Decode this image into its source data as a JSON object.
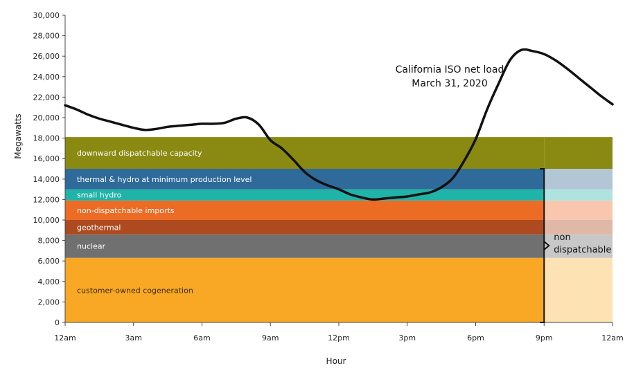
{
  "chart_data": {
    "type": "area",
    "ylabel": "Megawatts",
    "xlabel": "Hour",
    "ylim": [
      0,
      30000
    ],
    "xlim": [
      0,
      24
    ],
    "y_ticks": [
      0,
      2000,
      4000,
      6000,
      8000,
      10000,
      12000,
      14000,
      16000,
      18000,
      20000,
      22000,
      24000,
      26000,
      28000,
      30000
    ],
    "y_tick_labels": [
      "0",
      "2,000",
      "4,000",
      "6,000",
      "8,000",
      "10,000",
      "12,000",
      "14,000",
      "16,000",
      "18,000",
      "20,000",
      "22,000",
      "24,000",
      "26,000",
      "28,000",
      "30,000"
    ],
    "x_ticks": [
      0,
      3,
      6,
      9,
      12,
      15,
      18,
      21,
      24
    ],
    "x_tick_labels": [
      "12am",
      "3am",
      "6am",
      "9am",
      "12pm",
      "3pm",
      "6pm",
      "9pm",
      "12am"
    ],
    "bands": [
      {
        "label": "customer-owned cogeneration",
        "from": 0,
        "to": 6300,
        "color": "#f9a825",
        "faded_color": "#fde2b4",
        "text_color": "#3a2a00"
      },
      {
        "label": "nuclear",
        "from": 6300,
        "to": 8600,
        "color": "#707070",
        "faded_color": "#c8c8c8",
        "text_color": "#ffffff"
      },
      {
        "label": "geothermal",
        "from": 8600,
        "to": 10000,
        "color": "#ad4a1f",
        "faded_color": "#e0b8a8",
        "text_color": "#ffffff"
      },
      {
        "label": "non-dispatchable imports",
        "from": 10000,
        "to": 11900,
        "color": "#ec6b25",
        "faded_color": "#f8c7ae",
        "text_color": "#ffffff"
      },
      {
        "label": "small hydro",
        "from": 11900,
        "to": 13000,
        "color": "#20b3a8",
        "faded_color": "#aee3df",
        "text_color": "#ffffff"
      },
      {
        "label": "thermal & hydro at minimum production level",
        "from": 13000,
        "to": 15000,
        "color": "#2e6b9a",
        "faded_color": "#b3c6d6",
        "text_color": "#ffffff"
      },
      {
        "label": "downward dispatchable capacity",
        "from": 15000,
        "to": 18100,
        "color": "#8a8a12",
        "faded_color": "#8a8a12",
        "text_color": "#ffffff"
      }
    ],
    "non_dispatchable_label": [
      "non",
      "dispatchable"
    ],
    "non_dispatchable_range": [
      0,
      15000
    ],
    "fade_start_hour": 21,
    "series": [
      {
        "name": "California ISO net load March 31, 2020",
        "x": [
          0,
          0.5,
          1,
          1.5,
          2,
          2.5,
          3,
          3.5,
          4,
          4.5,
          5,
          5.5,
          6,
          6.5,
          7,
          7.5,
          8,
          8.5,
          9,
          9.5,
          10,
          10.5,
          11,
          11.5,
          12,
          12.5,
          13,
          13.5,
          14,
          14.5,
          15,
          15.5,
          16,
          16.5,
          17,
          17.5,
          18,
          18.5,
          19,
          19.5,
          20,
          20.5,
          21,
          21.5,
          22,
          22.5,
          23,
          23.5,
          24
        ],
        "values": [
          21200,
          20800,
          20300,
          19900,
          19600,
          19300,
          19000,
          18800,
          18900,
          19100,
          19200,
          19300,
          19400,
          19400,
          19500,
          19900,
          20000,
          19300,
          17800,
          17000,
          15900,
          14700,
          13900,
          13400,
          13000,
          12500,
          12200,
          12000,
          12100,
          12200,
          12300,
          12500,
          12700,
          13200,
          14100,
          15800,
          17900,
          20800,
          23300,
          25600,
          26600,
          26500,
          26200,
          25600,
          24800,
          23900,
          23000,
          22100,
          21300
        ]
      }
    ],
    "annotation": [
      "California ISO net load",
      "March 31, 2020"
    ],
    "colors": {
      "net_load_line": "#111111",
      "axis": "#444444",
      "bracket": "#111111"
    }
  }
}
